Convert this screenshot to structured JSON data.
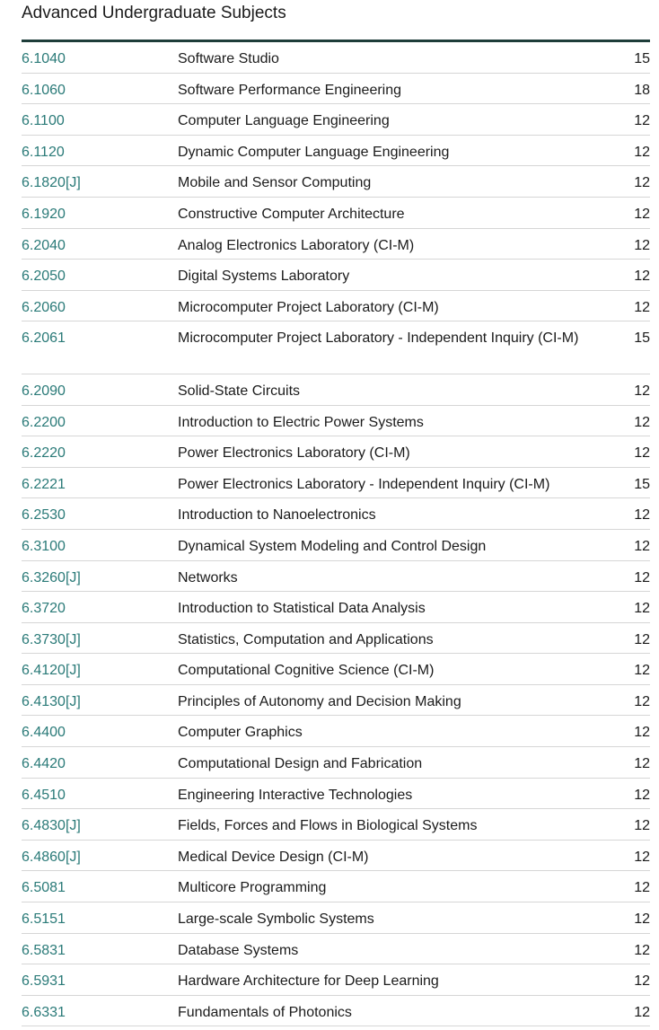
{
  "section_title": "Advanced Undergraduate Subjects",
  "subjects": [
    {
      "code": "6.1040",
      "name": "Software Studio",
      "units": "15"
    },
    {
      "code": "6.1060",
      "name": "Software Performance Engineering",
      "units": "18"
    },
    {
      "code": "6.1100",
      "name": "Computer Language Engineering",
      "units": "12"
    },
    {
      "code": "6.1120",
      "name": "Dynamic Computer Language Engineering",
      "units": "12"
    },
    {
      "code": "6.1820[J]",
      "name": "Mobile and Sensor Computing",
      "units": "12"
    },
    {
      "code": "6.1920",
      "name": "Constructive Computer Architecture",
      "units": "12"
    },
    {
      "code": "6.2040",
      "name": "Analog Electronics Laboratory (CI-M)",
      "units": "12"
    },
    {
      "code": "6.2050",
      "name": "Digital Systems Laboratory",
      "units": "12"
    },
    {
      "code": "6.2060",
      "name": "Microcomputer Project Laboratory (CI-M)",
      "units": "12"
    },
    {
      "code": "6.2061",
      "name": "Microcomputer Project Laboratory - Independent Inquiry (CI-M)",
      "units": "15"
    },
    {
      "code": "6.2090",
      "name": "Solid-State Circuits",
      "units": "12"
    },
    {
      "code": "6.2200",
      "name": "Introduction to Electric Power Systems",
      "units": "12"
    },
    {
      "code": "6.2220",
      "name": "Power Electronics Laboratory (CI-M)",
      "units": "12"
    },
    {
      "code": "6.2221",
      "name": "Power Electronics Laboratory - Independent Inquiry (CI-M)",
      "units": "15"
    },
    {
      "code": "6.2530",
      "name": "Introduction to Nanoelectronics",
      "units": "12"
    },
    {
      "code": "6.3100",
      "name": "Dynamical System Modeling and Control Design",
      "units": "12"
    },
    {
      "code": "6.3260[J]",
      "name": "Networks",
      "units": "12"
    },
    {
      "code": "6.3720",
      "name": "Introduction to Statistical Data Analysis",
      "units": "12"
    },
    {
      "code": "6.3730[J]",
      "name": "Statistics, Computation and Applications",
      "units": "12"
    },
    {
      "code": "6.4120[J]",
      "name": "Computational Cognitive Science (CI-M)",
      "units": "12"
    },
    {
      "code": "6.4130[J]",
      "name": "Principles of Autonomy and Decision Making",
      "units": "12"
    },
    {
      "code": "6.4400",
      "name": "Computer Graphics",
      "units": "12"
    },
    {
      "code": "6.4420",
      "name": "Computational Design and Fabrication",
      "units": "12"
    },
    {
      "code": "6.4510",
      "name": "Engineering Interactive Technologies",
      "units": "12"
    },
    {
      "code": "6.4830[J]",
      "name": "Fields, Forces and Flows in Biological Systems",
      "units": "12"
    },
    {
      "code": "6.4860[J]",
      "name": "Medical Device Design (CI-M)",
      "units": "12"
    },
    {
      "code": "6.5081",
      "name": "Multicore Programming",
      "units": "12"
    },
    {
      "code": "6.5151",
      "name": "Large-scale Symbolic Systems",
      "units": "12"
    },
    {
      "code": "6.5831",
      "name": "Database Systems",
      "units": "12"
    },
    {
      "code": "6.5931",
      "name": "Hardware Architecture for Deep Learning",
      "units": "12"
    },
    {
      "code": "6.6331",
      "name": "Fundamentals of Photonics",
      "units": "12"
    }
  ],
  "colors": {
    "link": "#2a7a78",
    "header_rule": "#1e3d3a",
    "row_divider": "#d6d6d6",
    "text": "#1b1b1b"
  }
}
